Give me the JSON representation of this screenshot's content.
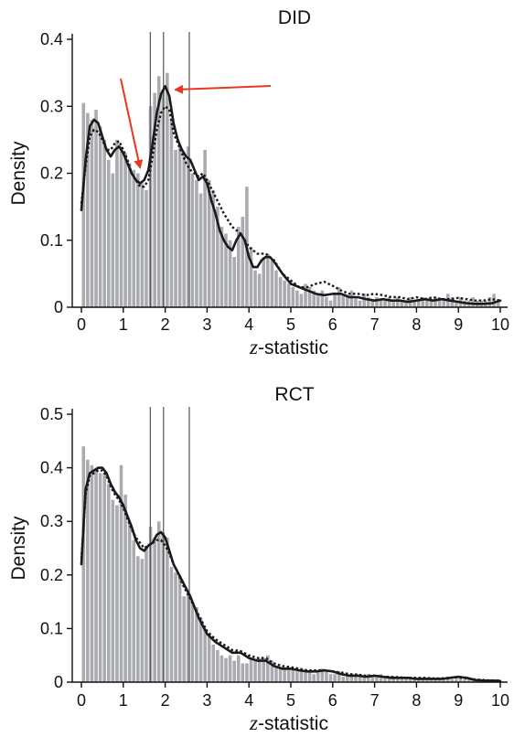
{
  "chart_data": [
    {
      "type": "bar",
      "title": "DID",
      "xlabel_italic": "z",
      "xlabel_rest": "-statistic",
      "ylabel": "Density",
      "xlim": [
        0,
        10
      ],
      "ylim": [
        0,
        0.4
      ],
      "xticks": [
        "0",
        "1",
        "2",
        "3",
        "4",
        "5",
        "6",
        "7",
        "8",
        "9",
        "10"
      ],
      "yticks": [
        0,
        0.1,
        0.2,
        0.3,
        0.4
      ],
      "ytick_labels": [
        "0",
        "0.1",
        "0.2",
        "0.3",
        "0.4"
      ],
      "threshold_lines": [
        1.645,
        1.96,
        2.576
      ],
      "bar_width": 0.1,
      "bar_x": [
        0.05,
        0.15,
        0.25,
        0.35,
        0.45,
        0.55,
        0.65,
        0.75,
        0.85,
        0.95,
        1.05,
        1.15,
        1.25,
        1.35,
        1.45,
        1.55,
        1.65,
        1.75,
        1.85,
        1.95,
        2.05,
        2.15,
        2.25,
        2.35,
        2.45,
        2.55,
        2.65,
        2.75,
        2.85,
        2.95,
        3.05,
        3.15,
        3.25,
        3.35,
        3.45,
        3.55,
        3.65,
        3.75,
        3.85,
        3.95,
        4.05,
        4.15,
        4.25,
        4.35,
        4.45,
        4.55,
        4.65,
        4.75,
        4.85,
        4.95,
        5.05,
        5.15,
        5.25,
        5.35,
        5.45,
        5.55,
        5.65,
        5.75,
        5.85,
        5.95,
        6.05,
        6.15,
        6.25,
        6.35,
        6.45,
        6.55,
        6.65,
        6.75,
        6.85,
        6.95,
        7.05,
        7.15,
        7.25,
        7.35,
        7.45,
        7.55,
        7.65,
        7.75,
        7.85,
        7.95,
        8.05,
        8.15,
        8.25,
        8.35,
        8.45,
        8.55,
        8.65,
        8.75,
        8.85,
        8.95,
        9.05,
        9.15,
        9.25,
        9.35,
        9.45,
        9.55,
        9.65,
        9.75,
        9.85,
        9.95
      ],
      "bar_values": [
        0.305,
        0.29,
        0.28,
        0.295,
        0.27,
        0.25,
        0.22,
        0.2,
        0.25,
        0.24,
        0.23,
        0.215,
        0.205,
        0.2,
        0.185,
        0.175,
        0.3,
        0.32,
        0.345,
        0.325,
        0.35,
        0.28,
        0.235,
        0.24,
        0.23,
        0.24,
        0.2,
        0.19,
        0.17,
        0.235,
        0.19,
        0.175,
        0.15,
        0.12,
        0.11,
        0.1,
        0.075,
        0.12,
        0.135,
        0.18,
        0.09,
        0.055,
        0.05,
        0.075,
        0.08,
        0.07,
        0.055,
        0.045,
        0.04,
        0.035,
        0.03,
        0.025,
        0.02,
        0.035,
        0.03,
        0.025,
        0.02,
        0.025,
        0.015,
        0.01,
        0.02,
        0.03,
        0.02,
        0.015,
        0.025,
        0.015,
        0.01,
        0.02,
        0.015,
        0.01,
        0.015,
        0.01,
        0.01,
        0.015,
        0.01,
        0.015,
        0.01,
        0.01,
        0.015,
        0.01,
        0.01,
        0.015,
        0.01,
        0.01,
        0.015,
        0.01,
        0.01,
        0.02,
        0.015,
        0.01,
        0.015,
        0.01,
        0.01,
        0.015,
        0.01,
        0.01,
        0.01,
        0.015,
        0.02,
        0.01
      ],
      "kde_solid": {
        "x": [
          0,
          0.1,
          0.2,
          0.3,
          0.4,
          0.5,
          0.6,
          0.7,
          0.8,
          0.9,
          1.0,
          1.1,
          1.2,
          1.3,
          1.4,
          1.5,
          1.6,
          1.7,
          1.8,
          1.9,
          2.0,
          2.1,
          2.2,
          2.3,
          2.4,
          2.5,
          2.6,
          2.7,
          2.8,
          2.9,
          3.0,
          3.1,
          3.2,
          3.3,
          3.4,
          3.5,
          3.6,
          3.7,
          3.8,
          3.9,
          4.0,
          4.1,
          4.2,
          4.3,
          4.4,
          4.5,
          4.6,
          4.8,
          5.0,
          5.2,
          5.4,
          5.6,
          5.8,
          6.0,
          6.2,
          6.4,
          6.6,
          6.8,
          7.0,
          7.2,
          7.4,
          7.6,
          7.8,
          8.0,
          8.2,
          8.4,
          8.6,
          8.8,
          9.0,
          9.2,
          9.4,
          9.6,
          9.8,
          10.0
        ],
        "y": [
          0.145,
          0.22,
          0.27,
          0.28,
          0.275,
          0.255,
          0.235,
          0.225,
          0.235,
          0.24,
          0.23,
          0.215,
          0.2,
          0.19,
          0.185,
          0.19,
          0.205,
          0.245,
          0.29,
          0.318,
          0.33,
          0.315,
          0.275,
          0.25,
          0.235,
          0.225,
          0.22,
          0.205,
          0.19,
          0.195,
          0.185,
          0.16,
          0.14,
          0.115,
          0.1,
          0.09,
          0.085,
          0.1,
          0.11,
          0.1,
          0.075,
          0.06,
          0.06,
          0.07,
          0.075,
          0.075,
          0.068,
          0.05,
          0.035,
          0.03,
          0.025,
          0.02,
          0.018,
          0.02,
          0.02,
          0.015,
          0.015,
          0.012,
          0.01,
          0.012,
          0.01,
          0.01,
          0.008,
          0.01,
          0.012,
          0.01,
          0.012,
          0.01,
          0.008,
          0.006,
          0.005,
          0.005,
          0.006,
          0.01
        ]
      },
      "kde_dotted": {
        "x": [
          0,
          0.1,
          0.2,
          0.3,
          0.4,
          0.5,
          0.6,
          0.7,
          0.8,
          0.9,
          1.0,
          1.1,
          1.2,
          1.3,
          1.4,
          1.5,
          1.6,
          1.7,
          1.8,
          1.9,
          2.0,
          2.1,
          2.2,
          2.3,
          2.4,
          2.5,
          2.6,
          2.7,
          2.8,
          2.9,
          3.0,
          3.2,
          3.4,
          3.6,
          3.8,
          4.0,
          4.2,
          4.4,
          4.6,
          4.8,
          5.0,
          5.2,
          5.4,
          5.6,
          5.8,
          6.0,
          6.2,
          6.4,
          6.6,
          6.8,
          7.0,
          7.2,
          7.4,
          7.6,
          7.8,
          8.0,
          8.2,
          8.4,
          8.6,
          8.8,
          9.0,
          9.2,
          9.4,
          9.6,
          9.8,
          10.0
        ],
        "y": [
          0.155,
          0.21,
          0.255,
          0.265,
          0.262,
          0.25,
          0.235,
          0.235,
          0.245,
          0.248,
          0.235,
          0.22,
          0.2,
          0.19,
          0.18,
          0.18,
          0.19,
          0.225,
          0.265,
          0.29,
          0.3,
          0.295,
          0.26,
          0.245,
          0.23,
          0.215,
          0.205,
          0.2,
          0.195,
          0.2,
          0.19,
          0.165,
          0.14,
          0.12,
          0.11,
          0.09,
          0.08,
          0.08,
          0.07,
          0.05,
          0.04,
          0.03,
          0.03,
          0.035,
          0.038,
          0.032,
          0.025,
          0.02,
          0.02,
          0.018,
          0.02,
          0.018,
          0.015,
          0.015,
          0.012,
          0.015,
          0.012,
          0.015,
          0.012,
          0.012,
          0.014,
          0.012,
          0.01,
          0.01,
          0.012,
          0.01
        ]
      }
    },
    {
      "type": "bar",
      "title": "RCT",
      "xlabel_italic": "z",
      "xlabel_rest": "-statistic",
      "ylabel": "Density",
      "xlim": [
        0,
        10
      ],
      "ylim": [
        0,
        0.5
      ],
      "xticks": [
        "0",
        "1",
        "2",
        "3",
        "4",
        "5",
        "6",
        "7",
        "8",
        "9",
        "10"
      ],
      "yticks": [
        0,
        0.1,
        0.2,
        0.3,
        0.4,
        0.5
      ],
      "ytick_labels": [
        "0",
        "0.1",
        "0.2",
        "0.3",
        "0.4",
        "0.5"
      ],
      "threshold_lines": [
        1.645,
        1.96,
        2.576
      ],
      "bar_width": 0.1,
      "bar_x": [
        0.05,
        0.15,
        0.25,
        0.35,
        0.45,
        0.55,
        0.65,
        0.75,
        0.85,
        0.95,
        1.05,
        1.15,
        1.25,
        1.35,
        1.45,
        1.55,
        1.65,
        1.75,
        1.85,
        1.95,
        2.05,
        2.15,
        2.25,
        2.35,
        2.45,
        2.55,
        2.65,
        2.75,
        2.85,
        2.95,
        3.05,
        3.15,
        3.25,
        3.35,
        3.45,
        3.55,
        3.65,
        3.75,
        3.85,
        3.95,
        4.05,
        4.15,
        4.25,
        4.35,
        4.45,
        4.55,
        4.65,
        4.75,
        4.85,
        4.95,
        5.05,
        5.15,
        5.25,
        5.35,
        5.45,
        5.55,
        5.65,
        5.75,
        5.85,
        5.95,
        6.05,
        6.15,
        6.25,
        6.35,
        6.45,
        6.55,
        6.65,
        6.75,
        6.85,
        6.95,
        7.05,
        7.15,
        7.25,
        7.35,
        7.45,
        7.55,
        7.65,
        7.75,
        7.85,
        7.95,
        8.05,
        8.15,
        8.25,
        8.35,
        8.45,
        8.55,
        8.65,
        8.75,
        8.85,
        8.95,
        9.05,
        9.15,
        9.25,
        9.35,
        9.45,
        9.55,
        9.65,
        9.75,
        9.85,
        9.95
      ],
      "bar_values": [
        0.44,
        0.415,
        0.405,
        0.395,
        0.39,
        0.39,
        0.37,
        0.34,
        0.33,
        0.405,
        0.35,
        0.3,
        0.265,
        0.235,
        0.23,
        0.25,
        0.29,
        0.27,
        0.3,
        0.28,
        0.27,
        0.215,
        0.205,
        0.2,
        0.16,
        0.165,
        0.15,
        0.14,
        0.12,
        0.1,
        0.085,
        0.07,
        0.06,
        0.05,
        0.045,
        0.05,
        0.04,
        0.05,
        0.035,
        0.035,
        0.045,
        0.04,
        0.045,
        0.045,
        0.05,
        0.04,
        0.03,
        0.025,
        0.025,
        0.025,
        0.025,
        0.02,
        0.02,
        0.02,
        0.02,
        0.015,
        0.02,
        0.025,
        0.02,
        0.015,
        0.015,
        0.02,
        0.01,
        0.015,
        0.015,
        0.01,
        0.01,
        0.01,
        0.015,
        0.01,
        0.01,
        0.015,
        0.01,
        0.01,
        0.01,
        0.01,
        0.008,
        0.008,
        0.008,
        0.008,
        0.008,
        0.008,
        0.008,
        0.008,
        0.008,
        0.005,
        0.008,
        0.008,
        0.005,
        0.006,
        0.008,
        0.005,
        0.005,
        0.005,
        0.005,
        0.005,
        0.005,
        0.005,
        0.005,
        0.005
      ],
      "kde_solid": {
        "x": [
          0,
          0.1,
          0.2,
          0.3,
          0.4,
          0.5,
          0.6,
          0.7,
          0.8,
          0.9,
          1.0,
          1.1,
          1.2,
          1.3,
          1.4,
          1.5,
          1.6,
          1.7,
          1.8,
          1.9,
          2.0,
          2.1,
          2.2,
          2.3,
          2.4,
          2.5,
          2.6,
          2.7,
          2.8,
          2.9,
          3.0,
          3.2,
          3.4,
          3.6,
          3.8,
          4.0,
          4.2,
          4.4,
          4.6,
          4.8,
          5.0,
          5.2,
          5.4,
          5.6,
          5.8,
          6.0,
          6.2,
          6.4,
          6.6,
          6.8,
          7.0,
          7.2,
          7.4,
          7.6,
          7.8,
          8.0,
          8.2,
          8.4,
          8.6,
          8.8,
          9.0,
          9.2,
          9.4,
          9.6,
          9.8,
          10.0
        ],
        "y": [
          0.22,
          0.36,
          0.39,
          0.395,
          0.4,
          0.4,
          0.39,
          0.37,
          0.355,
          0.345,
          0.33,
          0.31,
          0.29,
          0.265,
          0.25,
          0.245,
          0.255,
          0.26,
          0.275,
          0.28,
          0.27,
          0.245,
          0.22,
          0.205,
          0.19,
          0.175,
          0.16,
          0.14,
          0.12,
          0.105,
          0.09,
          0.075,
          0.065,
          0.055,
          0.055,
          0.045,
          0.04,
          0.04,
          0.03,
          0.025,
          0.025,
          0.022,
          0.02,
          0.02,
          0.022,
          0.02,
          0.015,
          0.012,
          0.012,
          0.01,
          0.012,
          0.01,
          0.008,
          0.008,
          0.008,
          0.006,
          0.006,
          0.006,
          0.006,
          0.008,
          0.01,
          0.008,
          0.004,
          0.003,
          0.003,
          0.002
        ]
      },
      "kde_dotted": {
        "x": [
          0,
          0.1,
          0.2,
          0.3,
          0.4,
          0.5,
          0.6,
          0.7,
          0.8,
          0.9,
          1.0,
          1.1,
          1.2,
          1.3,
          1.4,
          1.5,
          1.6,
          1.7,
          1.8,
          1.9,
          2.0,
          2.1,
          2.2,
          2.3,
          2.4,
          2.5,
          2.6,
          2.7,
          2.8,
          2.9,
          3.0,
          3.2,
          3.4,
          3.6,
          3.8,
          4.0,
          4.2,
          4.4,
          4.6,
          4.8,
          5.0,
          5.2,
          5.4,
          5.6,
          5.8,
          6.0,
          6.2,
          6.4,
          6.6,
          6.8,
          7.0,
          7.2,
          7.4,
          7.6,
          7.8,
          8.0,
          8.2,
          8.4,
          8.6,
          8.8,
          9.0,
          9.2,
          9.4,
          9.6,
          9.8,
          10.0
        ],
        "y": [
          0.23,
          0.35,
          0.385,
          0.39,
          0.395,
          0.395,
          0.385,
          0.365,
          0.35,
          0.34,
          0.325,
          0.305,
          0.285,
          0.27,
          0.26,
          0.25,
          0.255,
          0.26,
          0.265,
          0.265,
          0.255,
          0.24,
          0.22,
          0.205,
          0.185,
          0.17,
          0.155,
          0.14,
          0.125,
          0.11,
          0.095,
          0.08,
          0.07,
          0.06,
          0.058,
          0.05,
          0.045,
          0.045,
          0.035,
          0.03,
          0.028,
          0.025,
          0.022,
          0.022,
          0.022,
          0.02,
          0.018,
          0.015,
          0.014,
          0.012,
          0.012,
          0.01,
          0.01,
          0.009,
          0.008,
          0.008,
          0.008,
          0.007,
          0.007,
          0.008,
          0.009,
          0.007,
          0.005,
          0.004,
          0.003,
          0.003
        ]
      }
    }
  ]
}
